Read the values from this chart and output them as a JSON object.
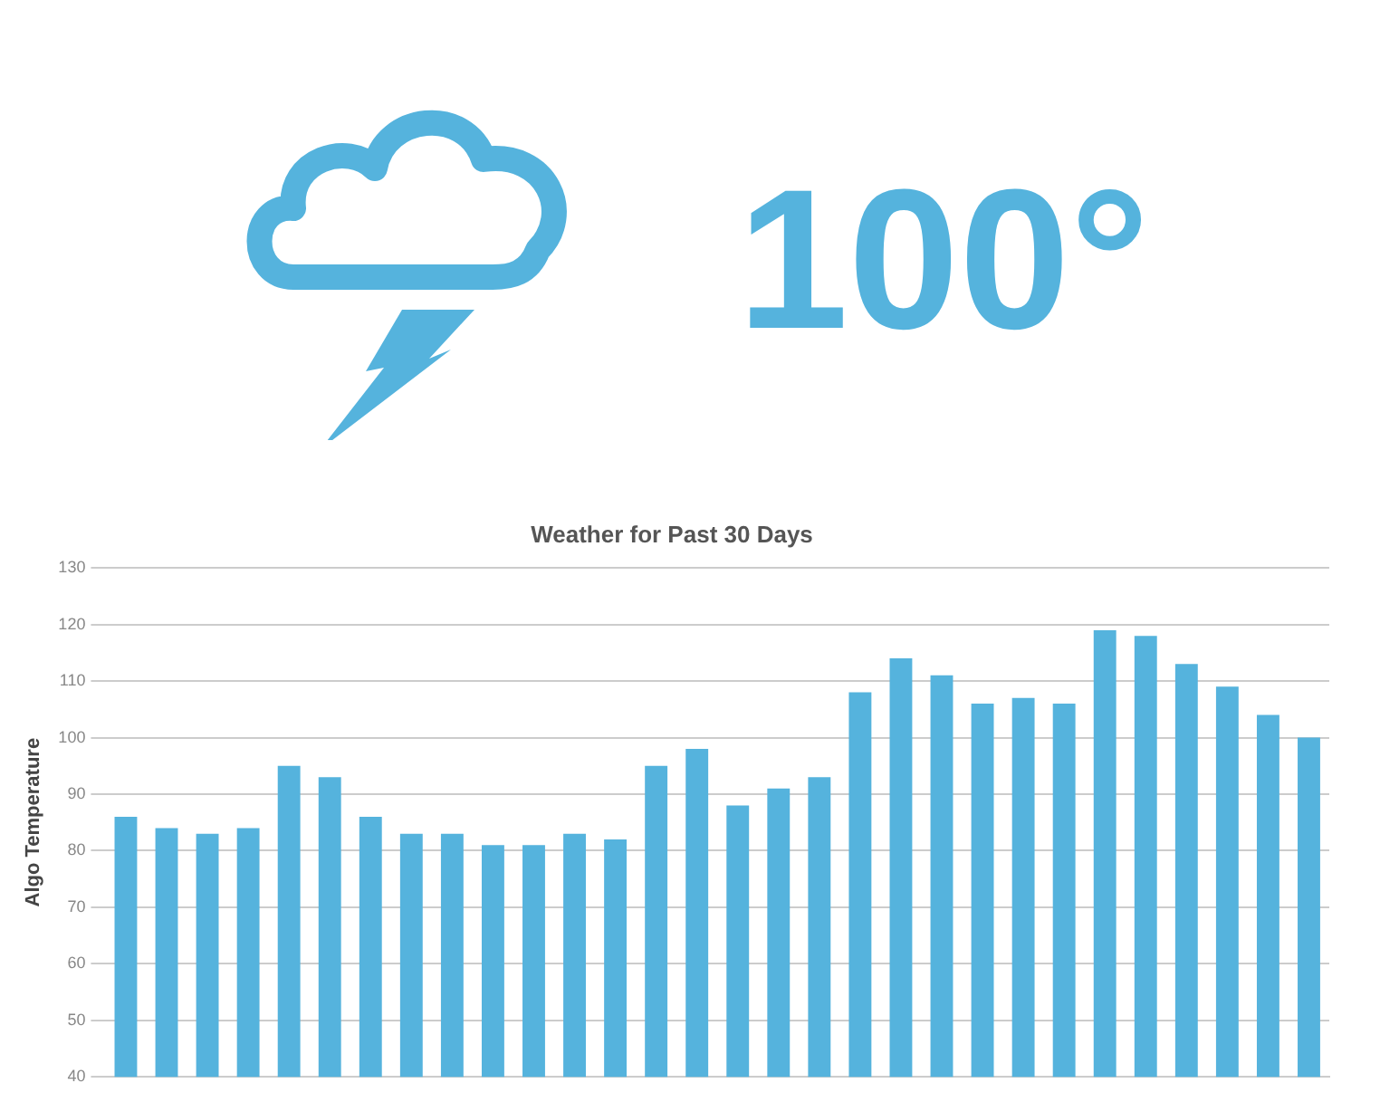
{
  "chart_data": {
    "type": "bar",
    "title": "Weather for Past 30 Days",
    "ylabel": "Algo Temperature",
    "annotations": [
      "100°"
    ],
    "categories": [
      null,
      null,
      null,
      null,
      null,
      null,
      null,
      null,
      null,
      null,
      null,
      null,
      null,
      null,
      null,
      null,
      null,
      null,
      null,
      null,
      null,
      null,
      null,
      null,
      null,
      null,
      null,
      null,
      null,
      null
    ],
    "values": [
      86,
      84,
      83,
      84,
      95,
      93,
      86,
      83,
      83,
      81,
      81,
      83,
      82,
      95,
      98,
      88,
      91,
      93,
      108,
      114,
      111,
      106,
      107,
      106,
      119,
      118,
      113,
      109,
      104,
      100
    ],
    "color": "#55b3dd",
    "ylim": [
      40,
      130
    ],
    "yticks": [
      40,
      50,
      60,
      70,
      80,
      90,
      100,
      110,
      120,
      130
    ],
    "grid": "y",
    "legend": false,
    "tick_labels": "y"
  }
}
